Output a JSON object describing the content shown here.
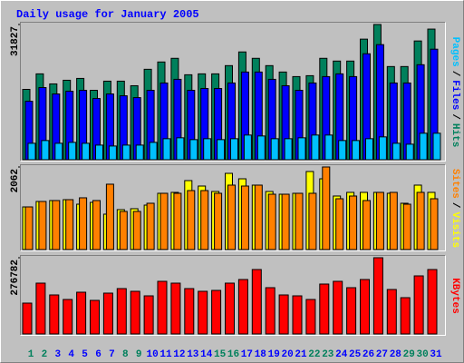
{
  "chart_data": {
    "type": "bar",
    "title": "Daily usage for January 2005",
    "categories": [
      "1",
      "2",
      "3",
      "4",
      "5",
      "6",
      "7",
      "8",
      "9",
      "10",
      "11",
      "12",
      "13",
      "14",
      "15",
      "16",
      "17",
      "18",
      "19",
      "20",
      "21",
      "22",
      "23",
      "24",
      "25",
      "26",
      "27",
      "28",
      "29",
      "30",
      "31"
    ],
    "category_colors": [
      "#00805c",
      "#00805c",
      "#0000ff",
      "#0000ff",
      "#0000ff",
      "#0000ff",
      "#0000ff",
      "#00805c",
      "#00805c",
      "#0000ff",
      "#0000ff",
      "#0000ff",
      "#0000ff",
      "#0000ff",
      "#00805c",
      "#00805c",
      "#0000ff",
      "#0000ff",
      "#0000ff",
      "#0000ff",
      "#0000ff",
      "#00805c",
      "#00805c",
      "#0000ff",
      "#0000ff",
      "#0000ff",
      "#0000ff",
      "#0000ff",
      "#00805c",
      "#00805c",
      "#0000ff"
    ],
    "legend_separator": "/",
    "panels": [
      {
        "ylim": [
          0,
          31827
        ],
        "yticks": [
          31827
        ],
        "series": [
          {
            "name": "Hits",
            "color": "#00805c",
            "values": [
              16555,
              20210,
              17845,
              18705,
              19135,
              16340,
              18490,
              18490,
              17415,
              21285,
              23005,
              23865,
              19995,
              20210,
              20210,
              22145,
              25370,
              23865,
              22145,
              20640,
              19565,
              19780,
              23865,
              23220,
              23220,
              28380,
              31827,
              21930,
              21930,
              27950,
              30745
            ]
          },
          {
            "name": "Files",
            "color": "#0000ff",
            "values": [
              13760,
              16985,
              15480,
              16125,
              16340,
              14405,
              15480,
              15050,
              14620,
              16340,
              18060,
              18920,
              16340,
              16770,
              16770,
              18060,
              20640,
              20640,
              18920,
              17415,
              16340,
              18060,
              19565,
              20210,
              19565,
              24940,
              27090,
              18060,
              18060,
              22360,
              26015
            ]
          },
          {
            "name": "Pages",
            "color": "#00c0ff",
            "values": [
              3870,
              4515,
              3870,
              4085,
              3870,
              3440,
              3225,
              3440,
              3440,
              4085,
              4945,
              5160,
              4730,
              4945,
              4730,
              4945,
              5805,
              5590,
              4945,
              4945,
              5160,
              5805,
              5805,
              4515,
              4515,
              4945,
              5375,
              3870,
              3655,
              6235,
              6235
            ]
          }
        ]
      },
      {
        "ylim": [
          0,
          2062
        ],
        "yticks": [
          2062
        ],
        "series": [
          {
            "name": "Visits",
            "color": "#ffff00",
            "values": [
              1065,
              1201,
              1224,
              1246,
              1133,
              1178,
              884,
              997,
              1020,
              1110,
              1405,
              1428,
              1722,
              1586,
              1450,
              1903,
              1767,
              1609,
              1450,
              1382,
              1405,
              1949,
              1767,
              1337,
              1428,
              1428,
              1428,
              1405,
              1156,
              1609,
              1428
            ]
          },
          {
            "name": "Sites",
            "color": "#ff8000",
            "values": [
              1065,
              1201,
              1224,
              1246,
              1292,
              1224,
              1632,
              952,
              952,
              1156,
              1405,
              1405,
              1473,
              1473,
              1405,
              1609,
              1586,
              1609,
              1382,
              1382,
              1405,
              1405,
              2062,
              1269,
              1337,
              1224,
              1428,
              1428,
              1133,
              1428,
              1269
            ]
          }
        ]
      },
      {
        "ylim": [
          0,
          276782
        ],
        "yticks": [
          276782
        ],
        "series": [
          {
            "name": "KBytes",
            "color": "#ff0000",
            "values": [
              112030,
              184520,
              141685,
              125210,
              151570,
              121915,
              148275,
              164750,
              154865,
              138390,
              191110,
              184520,
              164750,
              154865,
              158160,
              184520,
              197700,
              233945,
              168045,
              141685,
              138390,
              125210,
              181225,
              191110,
              168045,
              197700,
              276782,
              161455,
              131800,
              210880,
              233945
            ]
          }
        ]
      }
    ]
  }
}
